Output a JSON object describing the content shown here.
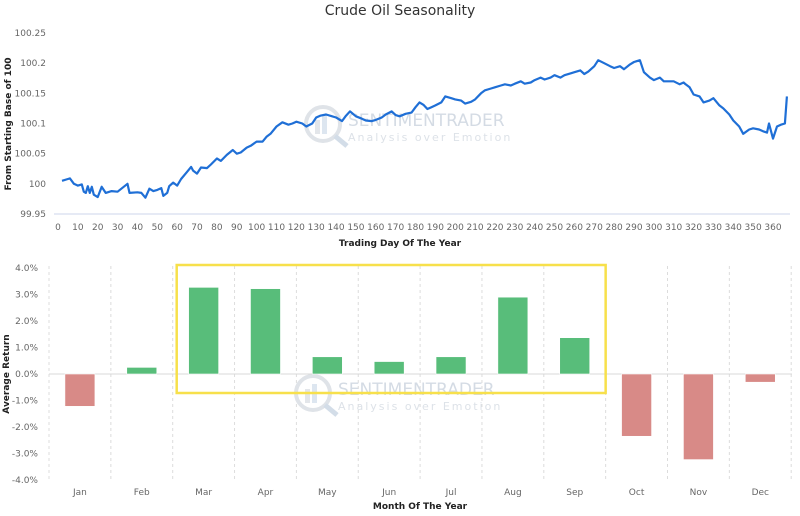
{
  "chart_data": [
    {
      "type": "line",
      "title": "Crude Oil Seasonality",
      "xlabel": "Trading Day Of The Year",
      "ylabel": "From Starting Base of 100",
      "xlim": [
        0,
        368
      ],
      "ylim": [
        99.95,
        100.25
      ],
      "xticks": [
        0,
        10,
        20,
        30,
        40,
        50,
        60,
        70,
        80,
        90,
        100,
        110,
        120,
        130,
        140,
        150,
        160,
        170,
        180,
        190,
        200,
        210,
        220,
        230,
        240,
        250,
        260,
        270,
        280,
        290,
        300,
        310,
        320,
        330,
        340,
        350,
        360
      ],
      "yticks": [
        "99.95",
        "100",
        "100.05",
        "100.1",
        "100.15",
        "100.2",
        "100.25"
      ],
      "ytick_values": [
        99.95,
        100,
        100.05,
        100.1,
        100.15,
        100.2,
        100.25
      ],
      "series": [
        {
          "name": "Crude Oil",
          "color": "#1f6fd6",
          "x": [
            2,
            5,
            6,
            8,
            10,
            12,
            13,
            14,
            15,
            16,
            17,
            18,
            20,
            22,
            24,
            27,
            30,
            35,
            36,
            40,
            42,
            44,
            46,
            48,
            50,
            52,
            53,
            55,
            56,
            58,
            60,
            62,
            65,
            67,
            68,
            70,
            72,
            75,
            77,
            80,
            82,
            85,
            88,
            90,
            92,
            95,
            97,
            100,
            103,
            105,
            107,
            110,
            113,
            116,
            118,
            120,
            123,
            125,
            128,
            130,
            132,
            135,
            138,
            140,
            143,
            145,
            147,
            150,
            153,
            155,
            158,
            160,
            163,
            165,
            168,
            170,
            172,
            175,
            178,
            180,
            182,
            184,
            186,
            188,
            190,
            193,
            195,
            198,
            200,
            203,
            205,
            208,
            210,
            213,
            215,
            218,
            220,
            223,
            225,
            228,
            230,
            233,
            235,
            238,
            240,
            243,
            245,
            248,
            250,
            253,
            255,
            258,
            260,
            263,
            265,
            267,
            270,
            272,
            275,
            278,
            280,
            283,
            285,
            288,
            290,
            293,
            295,
            298,
            300,
            303,
            305,
            308,
            310,
            313,
            315,
            316,
            318,
            320,
            323,
            325,
            328,
            330,
            333,
            335,
            338,
            340,
            343,
            345,
            348,
            350,
            353,
            355,
            357,
            358,
            360,
            362,
            364,
            366,
            367
          ],
          "values": [
            100.005,
            100.008,
            100.009,
            100.0,
            99.997,
            99.999,
            99.987,
            99.985,
            99.996,
            99.985,
            99.995,
            99.982,
            99.978,
            99.995,
            99.985,
            99.988,
            99.987,
            100.0,
            99.985,
            99.986,
            99.985,
            99.977,
            99.992,
            99.988,
            99.99,
            99.993,
            99.98,
            99.985,
            99.996,
            100.002,
            99.997,
            100.008,
            100.02,
            100.028,
            100.022,
            100.017,
            100.027,
            100.026,
            100.032,
            100.042,
            100.038,
            100.048,
            100.056,
            100.05,
            100.052,
            100.06,
            100.063,
            100.07,
            100.07,
            100.078,
            100.083,
            100.095,
            100.102,
            100.098,
            100.1,
            100.103,
            100.1,
            100.095,
            100.1,
            100.11,
            100.113,
            100.115,
            100.112,
            100.11,
            100.104,
            100.113,
            100.12,
            100.112,
            100.108,
            100.105,
            100.104,
            100.106,
            100.11,
            100.115,
            100.12,
            100.114,
            100.112,
            100.116,
            100.118,
            100.127,
            100.135,
            100.131,
            100.124,
            100.127,
            100.13,
            100.135,
            100.145,
            100.142,
            100.14,
            100.138,
            100.133,
            100.136,
            100.14,
            100.15,
            100.155,
            100.158,
            100.16,
            100.163,
            100.165,
            100.163,
            100.166,
            100.17,
            100.166,
            100.168,
            100.172,
            100.176,
            100.173,
            100.176,
            100.18,
            100.176,
            100.18,
            100.183,
            100.185,
            100.188,
            100.182,
            100.186,
            100.195,
            100.205,
            100.2,
            100.195,
            100.192,
            100.195,
            100.19,
            100.198,
            100.202,
            100.205,
            100.185,
            100.176,
            100.172,
            100.176,
            100.17,
            100.17,
            100.17,
            100.165,
            100.168,
            100.165,
            100.16,
            100.148,
            100.145,
            100.135,
            100.138,
            100.142,
            100.13,
            100.125,
            100.115,
            100.105,
            100.095,
            100.083,
            100.09,
            100.092,
            100.09,
            100.087,
            100.085,
            100.1,
            100.075,
            100.095,
            100.098,
            100.1,
            100.145
          ]
        }
      ],
      "watermark": {
        "brand": "SENTIMENTRADER",
        "tagline": "Analysis over Emotion"
      }
    },
    {
      "type": "bar",
      "xlabel": "Month Of The Year",
      "ylabel": "Average Return",
      "ylim": [
        -4.0,
        4.0
      ],
      "yticks": [
        "-4.0%",
        "-3.0%",
        "-2.0%",
        "-1.0%",
        "0.0%",
        "1.0%",
        "2.0%",
        "3.0%",
        "4.0%"
      ],
      "ytick_values": [
        -4,
        -3,
        -2,
        -1,
        0,
        1,
        2,
        3,
        4
      ],
      "categories": [
        "Jan",
        "Feb",
        "Mar",
        "Apr",
        "May",
        "Jun",
        "Jul",
        "Aug",
        "Sep",
        "Oct",
        "Nov",
        "Dec"
      ],
      "values": [
        -1.22,
        0.25,
        3.27,
        3.22,
        0.65,
        0.47,
        0.65,
        2.9,
        1.37,
        -2.35,
        -3.23,
        -0.31
      ],
      "colors": {
        "positive": "#58bd7a",
        "negative": "#d88a87",
        "highlight": "#f7e04b"
      },
      "highlight": [
        "Mar",
        "Sep"
      ],
      "watermark": {
        "brand": "SENTIMENTRADER",
        "tagline": "Analysis over Emotion"
      }
    }
  ]
}
